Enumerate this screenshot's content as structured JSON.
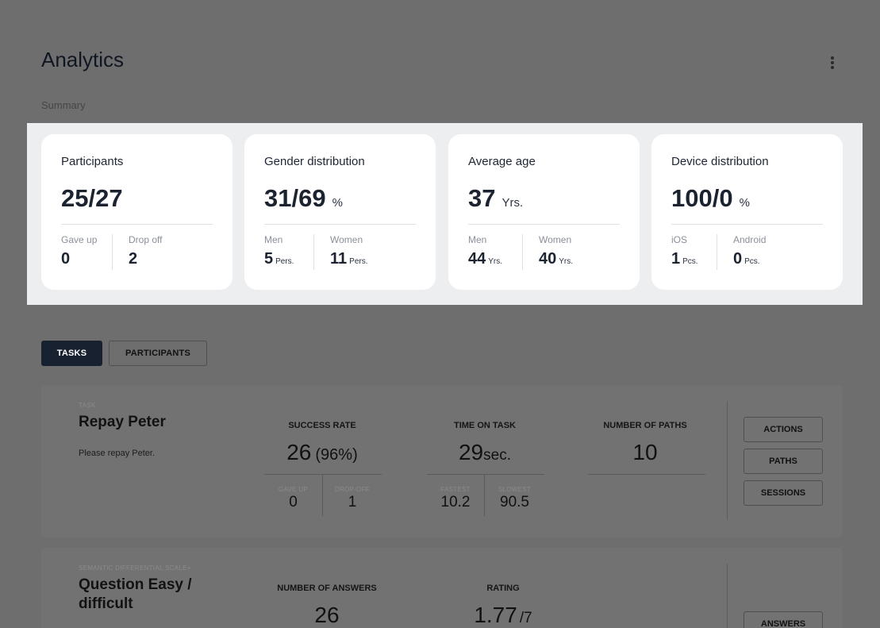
{
  "page": {
    "title": "Analytics",
    "section_label": "Summary",
    "menu_icon": "more-vertical-icon"
  },
  "summary": [
    {
      "title": "Participants",
      "value": "25/27",
      "unit": "",
      "sub": [
        {
          "label": "Gave up",
          "value": "0",
          "unit": ""
        },
        {
          "label": "Drop off",
          "value": "2",
          "unit": ""
        }
      ]
    },
    {
      "title": "Gender distribution",
      "value": "31/69",
      "unit": "%",
      "sub": [
        {
          "label": "Men",
          "value": "5",
          "unit": "Pers."
        },
        {
          "label": "Women",
          "value": "11",
          "unit": "Pers."
        }
      ]
    },
    {
      "title": "Average age",
      "value": "37",
      "unit": "Yrs.",
      "sub": [
        {
          "label": "Men",
          "value": "44",
          "unit": "Yrs."
        },
        {
          "label": "Women",
          "value": "40",
          "unit": "Yrs."
        }
      ]
    },
    {
      "title": "Device distribution",
      "value": "100/0",
      "unit": "%",
      "sub": [
        {
          "label": "iOS",
          "value": "1",
          "unit": "Pcs."
        },
        {
          "label": "Android",
          "value": "0",
          "unit": "Pcs."
        }
      ]
    }
  ],
  "tabs": [
    {
      "label": "TASKS",
      "active": true
    },
    {
      "label": "PARTICIPANTS",
      "active": false
    }
  ],
  "tasks": [
    {
      "tag": "TASK",
      "name": "Repay Peter",
      "description": "Please repay Peter.",
      "success_rate": {
        "label": "SUCCESS RATE",
        "value": "26",
        "detail": "(96%)",
        "sub": [
          {
            "label": "GAVE UP",
            "value": "0"
          },
          {
            "label": "DROP-OFF",
            "value": "1"
          }
        ]
      },
      "time_on_task": {
        "label": "TIME ON TASK",
        "value": "29",
        "unit": "sec.",
        "sub": [
          {
            "label": "FASTEST",
            "value": "10.2"
          },
          {
            "label": "SLOWEST",
            "value": "90.5"
          }
        ]
      },
      "paths": {
        "label": "NUMBER OF PATHS",
        "value": "10"
      },
      "actions": [
        "ACTIONS",
        "PATHS",
        "SESSIONS"
      ]
    },
    {
      "tag": "SEMANTIC DIFFERENTIAL SCALE+",
      "name_line1": "Question Easy /",
      "name_line2": "difficult",
      "answers": {
        "label": "NUMBER OF ANSWERS",
        "value": "26"
      },
      "rating": {
        "label": "RATING",
        "value": "1.77",
        "scale": "/7"
      },
      "actions": [
        "ANSWERS"
      ]
    }
  ]
}
